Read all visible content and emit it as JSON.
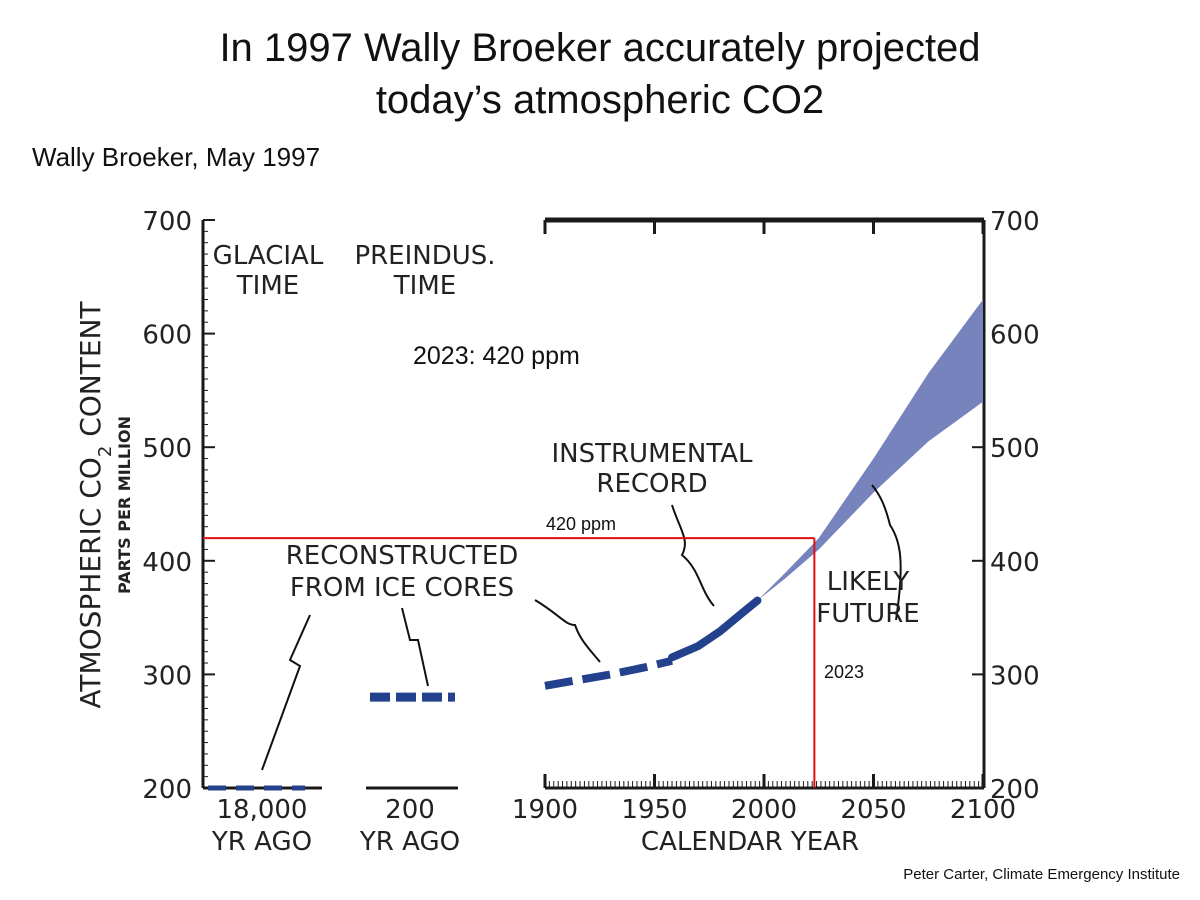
{
  "slide": {
    "title_line1": "In 1997 Wally Broeker accurately projected",
    "title_line2": "today’s atmospheric CO2",
    "subtitle": "Wally Broeker, May 1997",
    "credit": "Peter  Carter, Climate Emergency Institute"
  },
  "chart_data": {
    "type": "line",
    "y_axis": {
      "label_main": "ATMOSPHERIC CO",
      "label_sub": "2",
      "label_end": " CONTENT",
      "label_units": "PARTS PER MILLION",
      "ylim": [
        200,
        700
      ],
      "ticks": [
        200,
        300,
        400,
        500,
        600,
        700
      ]
    },
    "x_axis": {
      "label": "CALENDAR YEAR",
      "ticks": [
        1900,
        1950,
        2000,
        2050,
        2100
      ],
      "xlim": [
        1900,
        2100
      ]
    },
    "panels": [
      {
        "name": "glacial",
        "heading": [
          "GLACIAL",
          "TIME"
        ],
        "tick_line1": "18,000",
        "tick_line2": "YR AGO",
        "co2_ppm": 200
      },
      {
        "name": "preindustrial",
        "heading": [
          "PREINDUS.",
          "TIME"
        ],
        "tick_line1": "200",
        "tick_line2": "YR AGO",
        "co2_ppm": 280
      }
    ],
    "series": [
      {
        "name": "ice_cores",
        "x": [
          1900,
          1915,
          1930,
          1945,
          1958
        ],
        "y": [
          290,
          295,
          300,
          306,
          312
        ]
      },
      {
        "name": "instrumental",
        "x": [
          1958,
          1970,
          1980,
          1990,
          1997
        ],
        "y": [
          315,
          325,
          338,
          354,
          365
        ]
      },
      {
        "name": "future_upper",
        "x": [
          1997,
          2010,
          2025,
          2050,
          2075,
          2100
        ],
        "y": [
          365,
          390,
          420,
          490,
          565,
          630
        ]
      },
      {
        "name": "future_lower",
        "x": [
          1997,
          2010,
          2025,
          2050,
          2075,
          2100
        ],
        "y": [
          365,
          385,
          410,
          460,
          505,
          540
        ]
      }
    ],
    "annotations": {
      "reconstructed": [
        "RECONSTRUCTED",
        "FROM ICE CORES"
      ],
      "instrumental": [
        "INSTRUMENTAL",
        "RECORD"
      ],
      "likely_future": [
        "LIKELY",
        "FUTURE"
      ],
      "callout": "2023: 420 ppm",
      "ppm_label": "420 ppm",
      "year_label": "2023"
    },
    "marker": {
      "year": 2023,
      "ppm": 420
    },
    "colors": {
      "series": "#24418e",
      "band": "#7683bd",
      "marker": "#e01010",
      "axis": "#1a1a1a"
    }
  }
}
